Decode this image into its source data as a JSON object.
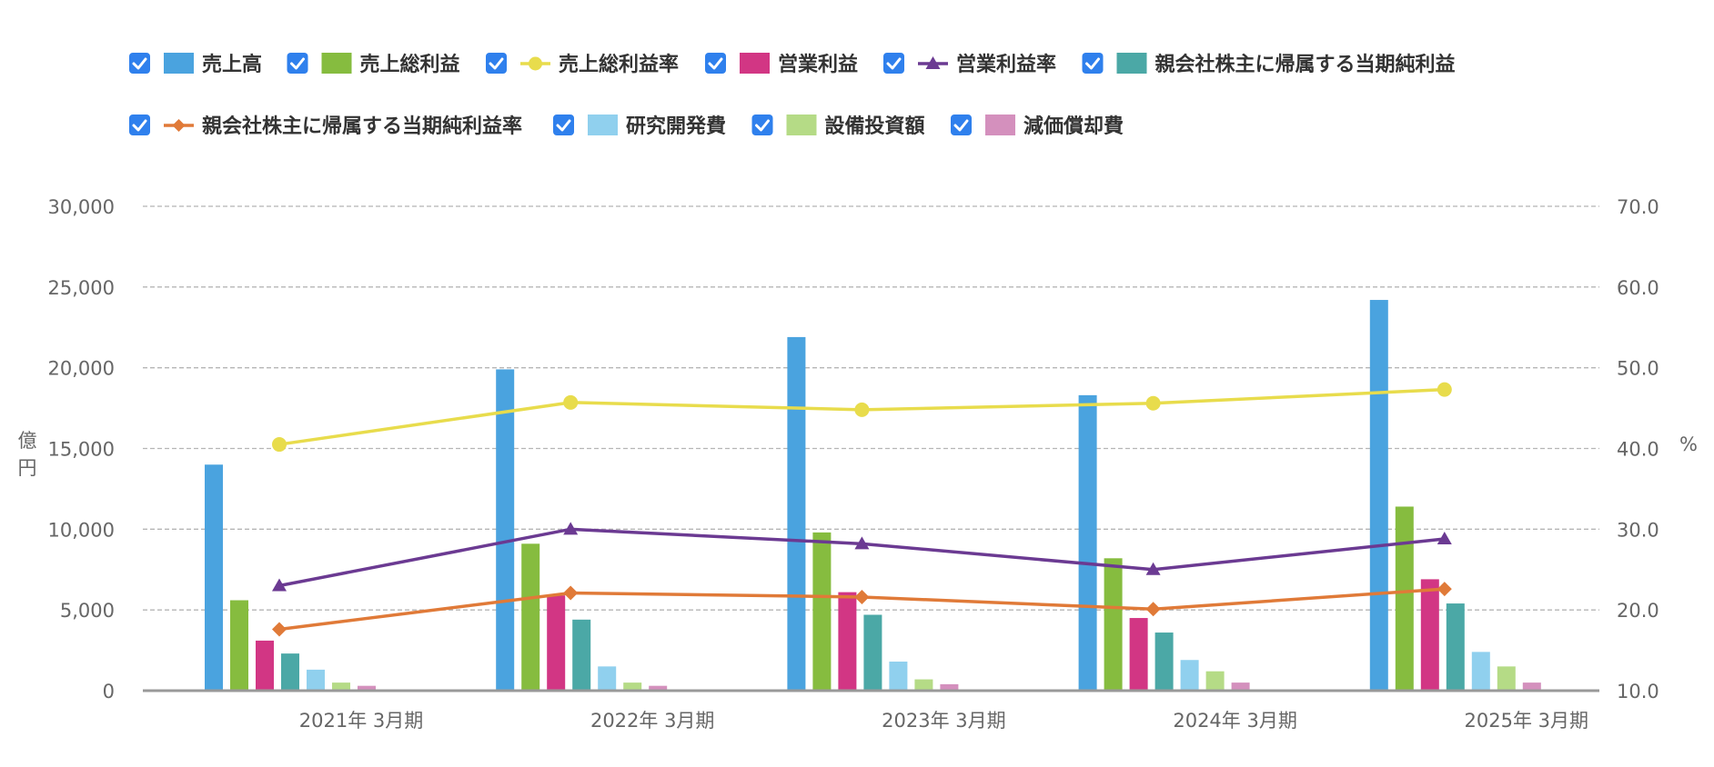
{
  "chart_data": {
    "type": "bar",
    "categories": [
      "2021年 3月期",
      "2022年 3月期",
      "2023年 3月期",
      "2024年 3月期",
      "2025年 3月期"
    ],
    "y_left": {
      "label": "億円",
      "ticks": [
        "0",
        "5,000",
        "10,000",
        "15,000",
        "20,000",
        "25,000",
        "30,000"
      ],
      "range": [
        0,
        30000
      ]
    },
    "y_right": {
      "label": "%",
      "ticks": [
        "10.0",
        "20.0",
        "30.0",
        "40.0",
        "50.0",
        "60.0",
        "70.0"
      ],
      "range": [
        10,
        70
      ]
    },
    "grid": true,
    "legend_position": "top",
    "series": [
      {
        "name": "売上高",
        "kind": "bar",
        "axis": "left",
        "color": "#4aa3df",
        "checked": true,
        "values": [
          14000,
          19900,
          21900,
          18300,
          24200
        ]
      },
      {
        "name": "売上総利益",
        "kind": "bar",
        "axis": "left",
        "color": "#86bc3f",
        "checked": true,
        "values": [
          5600,
          9100,
          9800,
          8200,
          11400
        ]
      },
      {
        "name": "売上総利益率",
        "kind": "line",
        "marker": "circle",
        "axis": "right",
        "color": "#e8dc4c",
        "checked": true,
        "values": [
          40.5,
          45.7,
          44.8,
          45.6,
          47.3
        ]
      },
      {
        "name": "営業利益",
        "kind": "bar",
        "axis": "left",
        "color": "#d23684",
        "checked": true,
        "values": [
          3100,
          5900,
          6100,
          4500,
          6900
        ]
      },
      {
        "name": "営業利益率",
        "kind": "line",
        "marker": "triangle",
        "axis": "right",
        "color": "#6b3a92",
        "checked": true,
        "values": [
          23.0,
          30.0,
          28.2,
          25.0,
          28.8
        ]
      },
      {
        "name": "親会社株主に帰属する当期純利益",
        "kind": "bar",
        "axis": "left",
        "color": "#4ba8a6",
        "checked": true,
        "values": [
          2300,
          4400,
          4700,
          3600,
          5400
        ]
      },
      {
        "name": "親会社株主に帰属する当期純利益率",
        "kind": "line",
        "marker": "diamond",
        "axis": "right",
        "color": "#e07a38",
        "checked": true,
        "values": [
          17.6,
          22.1,
          21.6,
          20.1,
          22.6
        ]
      },
      {
        "name": "研究開発費",
        "kind": "bar",
        "axis": "left",
        "color": "#90d0ee",
        "checked": true,
        "values": [
          1300,
          1500,
          1800,
          1900,
          2400
        ]
      },
      {
        "name": "設備投資額",
        "kind": "bar",
        "axis": "left",
        "color": "#b5db86",
        "checked": true,
        "values": [
          500,
          500,
          700,
          1200,
          1500
        ]
      },
      {
        "name": "減価償却費",
        "kind": "bar",
        "axis": "left",
        "color": "#d490bd",
        "checked": true,
        "values": [
          300,
          300,
          400,
          500,
          500
        ]
      }
    ],
    "title": ""
  },
  "checkbox_color": "#2f80ed",
  "axis_color": "#999999",
  "grid_color": "#b5b5b5"
}
